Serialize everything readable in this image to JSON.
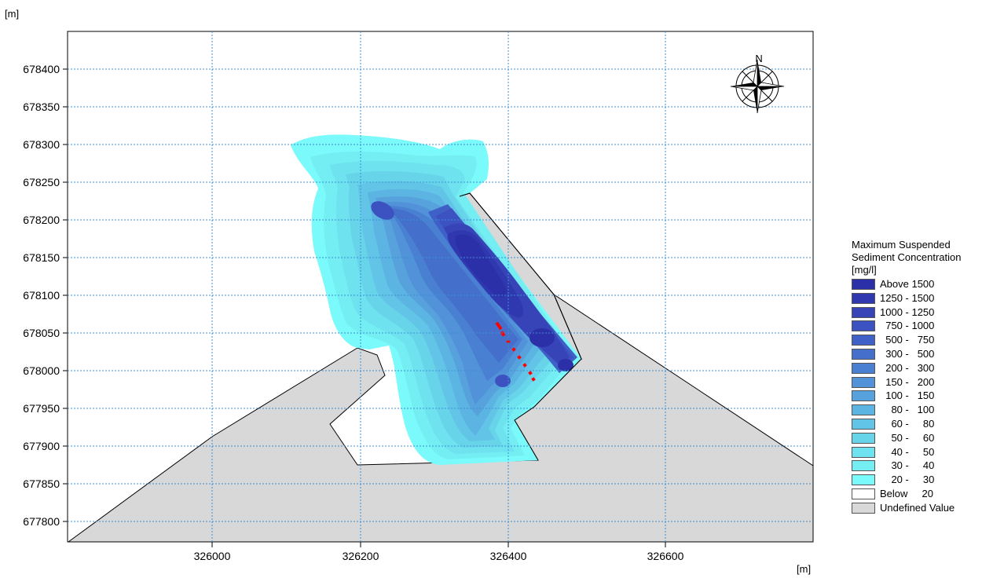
{
  "map": {
    "y_unit": "[m]",
    "x_unit": "[m]",
    "x_ticks": [
      "326000",
      "326200",
      "326400",
      "326600"
    ],
    "y_ticks": [
      "678400",
      "678350",
      "678300",
      "678250",
      "678200",
      "678150",
      "678100",
      "678050",
      "678000",
      "677950",
      "677900",
      "677850",
      "677800"
    ],
    "north_label": "N"
  },
  "legend": {
    "title_lines": [
      "Maximum Suspended",
      "Sediment Concentration",
      "[mg/l]"
    ],
    "items": [
      {
        "label": "Above 1500",
        "color": "#2b2fa8"
      },
      {
        "label": "1250 - 1500",
        "color": "#3038b0"
      },
      {
        "label": "1000 - 1250",
        "color": "#3744b8"
      },
      {
        "label": "  750 - 1000",
        "color": "#3c52c0"
      },
      {
        "label": "  500 -   750",
        "color": "#3f60c6"
      },
      {
        "label": "  300 -   500",
        "color": "#4470cc"
      },
      {
        "label": "  200 -   300",
        "color": "#4a80d2"
      },
      {
        "label": "  150 -   200",
        "color": "#5192d8"
      },
      {
        "label": "  100 -   150",
        "color": "#57a2dc"
      },
      {
        "label": "    80 -   100",
        "color": "#5cb4e2"
      },
      {
        "label": "    60 -     80",
        "color": "#62c4e6"
      },
      {
        "label": "    50 -     60",
        "color": "#68d4ea"
      },
      {
        "label": "    40 -     50",
        "color": "#6ee2ee"
      },
      {
        "label": "    30 -     40",
        "color": "#74eef2"
      },
      {
        "label": "    20 -     30",
        "color": "#7afafa"
      },
      {
        "label": "Below     20",
        "color": "#ffffff"
      },
      {
        "label": "Undefined Value",
        "color": "#d8d8d8"
      }
    ]
  }
}
